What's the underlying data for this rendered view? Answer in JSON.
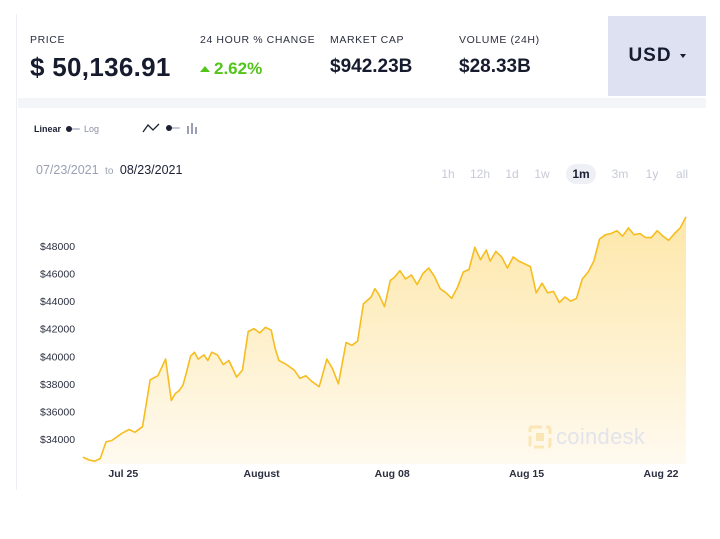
{
  "stats": {
    "price": {
      "label": "PRICE",
      "value": "$ 50,136.91"
    },
    "change": {
      "label": "24 HOUR % CHANGE",
      "value": "2.62%"
    },
    "market_cap": {
      "label": "MARKET CAP",
      "value": "$942.23B"
    },
    "volume": {
      "label": "VOLUME (24H)",
      "value": "$28.33B"
    }
  },
  "currency": {
    "label": "USD"
  },
  "scale": {
    "linear_label": "Linear",
    "log_label": "Log"
  },
  "chart_types": {
    "line_icon": "line-chart-icon",
    "bar_icon": "bar-chart-icon"
  },
  "date_range": {
    "from": "07/23/2021",
    "to_label": "to",
    "until": "08/23/2021"
  },
  "ranges": [
    "1h",
    "12h",
    "1d",
    "1w",
    "1m",
    "3m",
    "1y",
    "all"
  ],
  "active_range": "1m",
  "colors": {
    "line": "#f5bd1f",
    "fill_top": "#fde7a9",
    "fill_bottom": "#fffaf0",
    "positive": "#52c41a",
    "currency_bg": "#dde1f1"
  },
  "watermark": {
    "text": "coindesk"
  },
  "chart_data": {
    "type": "area",
    "ylim": [
      32200,
      50600
    ],
    "xlim": [
      0,
      31.4
    ],
    "yticks": [
      34000,
      36000,
      38000,
      40000,
      42000,
      44000,
      46000,
      48000
    ],
    "ytick_labels": [
      "$34000",
      "$36000",
      "$38000",
      "$40000",
      "$42000",
      "$44000",
      "$46000",
      "$48000"
    ],
    "xticks": [
      2.1,
      9.3,
      16.1,
      23.1,
      30.1
    ],
    "xtick_labels": [
      "Jul 25",
      "August",
      "Aug 08",
      "Aug 15",
      "Aug 22"
    ],
    "x_unit_note_hidden": true,
    "series": [
      {
        "x": [
          0,
          0.3,
          0.6,
          0.9,
          1.2,
          1.5,
          1.7,
          2,
          2.4,
          2.7,
          3.1,
          3.5,
          3.9,
          4.3,
          4.6,
          4.8,
          5,
          5.2,
          5.4,
          5.6,
          5.8,
          6,
          6.3,
          6.5,
          6.7,
          7,
          7.3,
          7.6,
          8,
          8.3,
          8.6,
          8.9,
          9.2,
          9.5,
          9.8,
          10,
          10.2,
          10.6,
          11,
          11.3,
          11.6,
          11.9,
          12.3,
          12.7,
          13,
          13.3,
          13.7,
          14,
          14.3,
          14.6,
          15,
          15.2,
          15.4,
          15.7,
          16,
          16.2,
          16.5,
          16.8,
          17.1,
          17.4,
          17.7,
          18,
          18.3,
          18.6,
          18.9,
          19.2,
          19.5,
          19.8,
          20.1,
          20.4,
          20.7,
          21,
          21.2,
          21.5,
          21.8,
          22.1,
          22.4,
          22.7,
          23,
          23.3,
          23.6,
          23.9,
          24.2,
          24.5,
          24.8,
          25.1,
          25.4,
          25.7,
          26,
          26.3,
          26.6,
          26.9,
          27.2,
          27.5,
          27.8,
          28.1,
          28.4,
          28.7,
          29,
          29.3,
          29.6,
          29.9,
          30.2,
          30.5,
          30.8,
          31.1,
          31.4
        ],
        "y": [
          32700,
          32500,
          32400,
          32600,
          33800,
          33900,
          34100,
          34400,
          34700,
          34500,
          34900,
          38300,
          38600,
          39800,
          36800,
          37300,
          37500,
          37900,
          38900,
          40000,
          40300,
          39800,
          40100,
          39700,
          40300,
          40100,
          39400,
          39700,
          38500,
          39000,
          41800,
          42000,
          41700,
          42100,
          41900,
          40600,
          39700,
          39400,
          39000,
          38400,
          38600,
          38200,
          37800,
          39800,
          39100,
          38000,
          41000,
          40800,
          41100,
          43800,
          44300,
          44900,
          44500,
          43600,
          45500,
          45700,
          46200,
          45600,
          45900,
          45200,
          46000,
          46400,
          45800,
          44900,
          44600,
          44200,
          45000,
          46100,
          46300,
          47900,
          47000,
          47700,
          46900,
          47600,
          47200,
          46400,
          47200,
          46900,
          46700,
          46500,
          44600,
          45300,
          44600,
          44700,
          43900,
          44300,
          44000,
          44200,
          45600,
          46100,
          46900,
          48500,
          48800,
          48900,
          49100,
          48700,
          49300,
          48800,
          48900,
          48600,
          48600,
          49100,
          48700,
          48400,
          48900,
          49300,
          50100
        ]
      }
    ]
  }
}
